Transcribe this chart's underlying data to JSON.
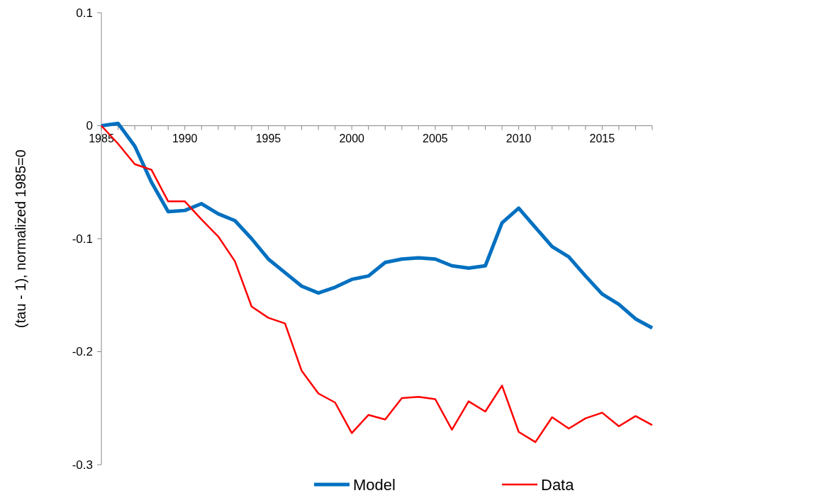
{
  "chart_data": {
    "type": "line",
    "ylabel": "(tau - 1), normalized 1985=0",
    "x": [
      1985,
      1986,
      1987,
      1988,
      1989,
      1990,
      1991,
      1992,
      1993,
      1994,
      1995,
      1996,
      1997,
      1998,
      1999,
      2000,
      2001,
      2002,
      2003,
      2004,
      2005,
      2006,
      2007,
      2008,
      2009,
      2010,
      2011,
      2012,
      2013,
      2014,
      2015,
      2016,
      2017,
      2018
    ],
    "series": [
      {
        "name": "Model",
        "color": "#0070c0",
        "values": [
          0,
          0.002,
          -0.018,
          -0.05,
          -0.076,
          -0.075,
          -0.069,
          -0.078,
          -0.084,
          -0.1,
          -0.118,
          -0.13,
          -0.142,
          -0.148,
          -0.143,
          -0.136,
          -0.133,
          -0.121,
          -0.118,
          -0.117,
          -0.118,
          -0.124,
          -0.126,
          -0.124,
          -0.086,
          -0.073,
          -0.09,
          -0.107,
          -0.116,
          -0.133,
          -0.149,
          -0.158,
          -0.171,
          -0.179
        ]
      },
      {
        "name": "Data",
        "color": "#ff0000",
        "values": [
          0,
          -0.016,
          -0.034,
          -0.039,
          -0.067,
          -0.067,
          -0.083,
          -0.098,
          -0.12,
          -0.16,
          -0.17,
          -0.175,
          -0.217,
          -0.237,
          -0.245,
          -0.272,
          -0.256,
          -0.26,
          -0.241,
          -0.24,
          -0.242,
          -0.269,
          -0.244,
          -0.253,
          -0.23,
          -0.271,
          -0.28,
          -0.258,
          -0.268,
          -0.259,
          -0.254,
          -0.266,
          -0.257,
          -0.265
        ]
      }
    ],
    "xlim": [
      1985,
      2018
    ],
    "xticks": [
      1985,
      {
        "value": 1986,
        "label": null
      },
      {
        "value": 1987,
        "label": null
      },
      {
        "value": 1988,
        "label": null
      },
      {
        "value": 1989,
        "label": null
      },
      1990,
      {
        "value": 1991,
        "label": null
      },
      {
        "value": 1992,
        "label": null
      },
      {
        "value": 1993,
        "label": null
      },
      {
        "value": 1994,
        "label": null
      },
      1995,
      {
        "value": 1996,
        "label": null
      },
      {
        "value": 1997,
        "label": null
      },
      {
        "value": 1998,
        "label": null
      },
      {
        "value": 1999,
        "label": null
      },
      2000,
      {
        "value": 2001,
        "label": null
      },
      {
        "value": 2002,
        "label": null
      },
      {
        "value": 2003,
        "label": null
      },
      {
        "value": 2004,
        "label": null
      },
      2005,
      {
        "value": 2006,
        "label": null
      },
      {
        "value": 2007,
        "label": null
      },
      {
        "value": 2008,
        "label": null
      },
      {
        "value": 2009,
        "label": null
      },
      2010,
      {
        "value": 2011,
        "label": null
      },
      {
        "value": 2012,
        "label": null
      },
      {
        "value": 2013,
        "label": null
      },
      {
        "value": 2014,
        "label": null
      },
      2015,
      {
        "value": 2016,
        "label": null
      },
      {
        "value": 2017,
        "label": null
      },
      {
        "value": 2018,
        "label": null
      }
    ],
    "ylim": [
      -0.3,
      0.1
    ],
    "yticks": [
      -0.3,
      -0.2,
      -0.1,
      0,
      0.1
    ],
    "grid": false,
    "legend": "bottom",
    "line_style": "solid"
  }
}
